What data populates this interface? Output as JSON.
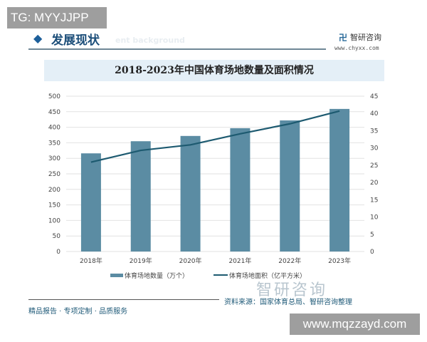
{
  "watermark_tg": "TG: MYYJJPP",
  "section": {
    "title": "发展现状",
    "subtitle": "ent background"
  },
  "logo": {
    "name": "智研咨询",
    "url": "www.chyxx.com"
  },
  "chart_data": {
    "type": "bar+line",
    "title": "2018-2023年中国体育场地数量及面积情况",
    "categories": [
      "2018年",
      "2019年",
      "2020年",
      "2021年",
      "2022年",
      "2023年"
    ],
    "series": [
      {
        "name": "体育场地数量（万个）",
        "type": "bar",
        "axis": "left",
        "values": [
          316,
          355,
          372,
          397,
          422,
          459
        ],
        "color": "#5b8ca3"
      },
      {
        "name": "体育场地面积（亿平方米）",
        "type": "line",
        "axis": "right",
        "values": [
          25.9,
          29.3,
          30.9,
          34.1,
          37.0,
          40.7
        ],
        "color": "#1d5a70"
      }
    ],
    "y_left": {
      "min": 0,
      "max": 500,
      "ticks": [
        0,
        50,
        100,
        150,
        200,
        250,
        300,
        350,
        400,
        450,
        500
      ]
    },
    "y_right": {
      "min": 0,
      "max": 45,
      "ticks": [
        0,
        5,
        10,
        15,
        20,
        25,
        30,
        35,
        40,
        45
      ]
    },
    "grid": true,
    "legend": "bottom"
  },
  "footer": {
    "left": "精品报告 · 专项定制 · 品质服务",
    "source": "资料来源：国家体育总局、智研咨询整理",
    "brand": "智研咨询"
  },
  "watermark_site": "www.mqzzayd.com"
}
